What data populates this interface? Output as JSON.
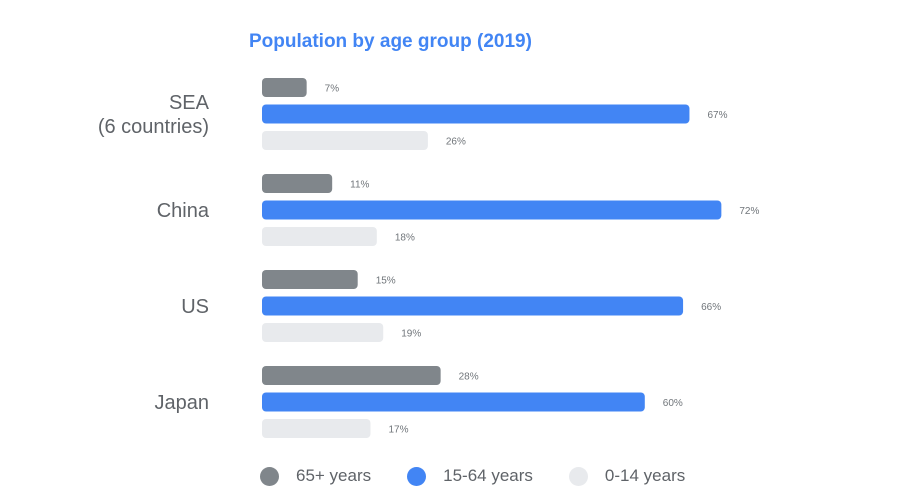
{
  "chart_data": {
    "type": "bar",
    "orientation": "horizontal",
    "title": "Population by age group (2019)",
    "categories": [
      "SEA (6 countries)",
      "China",
      "US",
      "Japan"
    ],
    "category_lines": [
      [
        "SEA",
        "(6 countries)"
      ],
      [
        "China"
      ],
      [
        "US"
      ],
      [
        "Japan"
      ]
    ],
    "series": [
      {
        "name": "65+ years",
        "color": "#80868b",
        "values": [
          7,
          11,
          15,
          28
        ]
      },
      {
        "name": "15-64 years",
        "color": "#4285f4",
        "values": [
          67,
          72,
          66,
          60
        ]
      },
      {
        "name": "0-14 years",
        "color": "#e8eaed",
        "values": [
          26,
          18,
          19,
          17
        ]
      }
    ],
    "value_suffix": "%",
    "xlim": [
      0,
      100
    ],
    "xlabel": "",
    "ylabel": "",
    "grid": false,
    "legend_position": "bottom",
    "colors": {
      "title": "#4285f4",
      "category_text": "#5f6368",
      "value_text": "#70757a"
    }
  }
}
